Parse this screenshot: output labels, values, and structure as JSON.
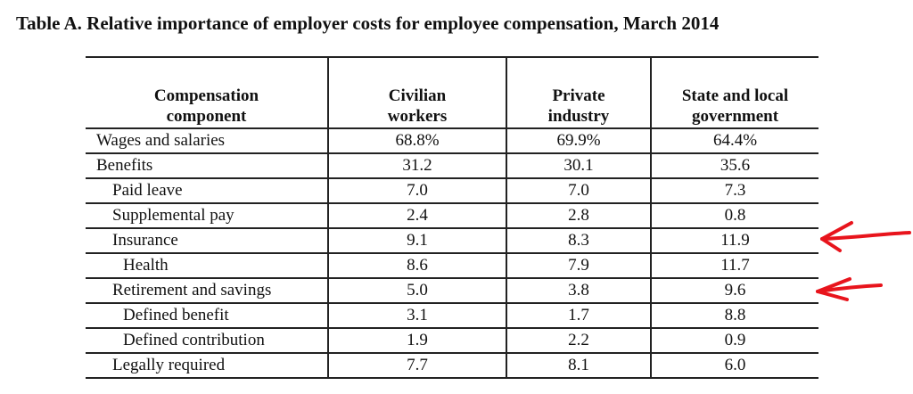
{
  "title": "Table A.  Relative importance of employer costs for employee compensation, March 2014",
  "table": {
    "headers": [
      [
        "Compensation",
        "component"
      ],
      [
        "Civilian",
        "workers"
      ],
      [
        "Private",
        "industry"
      ],
      [
        "State and local",
        "government"
      ]
    ],
    "rows": [
      {
        "label": "Wages and salaries",
        "level": 0,
        "values": [
          "68.8%",
          "69.9%",
          "64.4%"
        ]
      },
      {
        "label": "Benefits",
        "level": 0,
        "values": [
          "31.2",
          "30.1",
          "35.6"
        ]
      },
      {
        "label": "Paid leave",
        "level": 1,
        "values": [
          "7.0",
          "7.0",
          "7.3"
        ]
      },
      {
        "label": "Supplemental pay",
        "level": 1,
        "values": [
          "2.4",
          "2.8",
          "0.8"
        ]
      },
      {
        "label": "Insurance",
        "level": 1,
        "values": [
          "9.1",
          "8.3",
          "11.9"
        ]
      },
      {
        "label": "Health",
        "level": 2,
        "values": [
          "8.6",
          "7.9",
          "11.7"
        ]
      },
      {
        "label": "Retirement and savings",
        "level": 1,
        "values": [
          "5.0",
          "3.8",
          "9.6"
        ]
      },
      {
        "label": "Defined benefit",
        "level": 2,
        "values": [
          "3.1",
          "1.7",
          "8.8"
        ]
      },
      {
        "label": "Defined contribution",
        "level": 2,
        "values": [
          "1.9",
          "2.2",
          "0.9"
        ]
      },
      {
        "label": "Legally required",
        "level": 1,
        "values": [
          "7.7",
          "8.1",
          "6.0"
        ]
      }
    ]
  },
  "annotations": {
    "color": "#e8141c",
    "arrows": [
      {
        "points_to_row": "Insurance",
        "icon": "hand-drawn-arrow-left"
      },
      {
        "points_to_row": "Retirement and savings",
        "icon": "hand-drawn-arrow-left"
      }
    ]
  }
}
